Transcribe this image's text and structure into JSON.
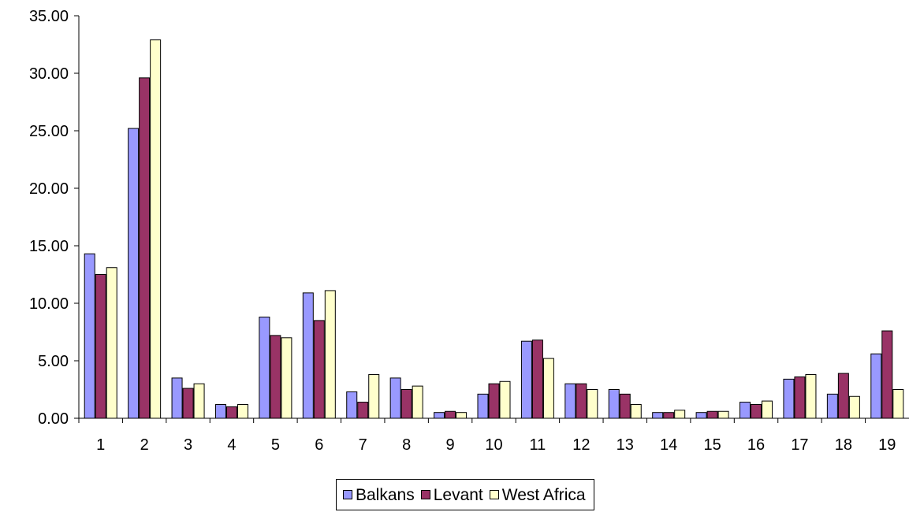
{
  "chart_data": {
    "type": "bar",
    "categories": [
      "1",
      "2",
      "3",
      "4",
      "5",
      "6",
      "7",
      "8",
      "9",
      "10",
      "11",
      "12",
      "13",
      "14",
      "15",
      "16",
      "17",
      "18",
      "19"
    ],
    "series": [
      {
        "name": "Balkans",
        "color": "#9999ff",
        "values": [
          14.3,
          25.2,
          3.5,
          1.2,
          8.8,
          10.9,
          2.3,
          3.5,
          0.5,
          2.1,
          6.7,
          3.0,
          2.5,
          0.5,
          0.5,
          1.4,
          3.4,
          2.1,
          5.6
        ]
      },
      {
        "name": "Levant",
        "color": "#993366",
        "values": [
          12.5,
          29.6,
          2.6,
          1.0,
          7.2,
          8.5,
          1.4,
          2.5,
          0.6,
          3.0,
          6.8,
          3.0,
          2.1,
          0.5,
          0.6,
          1.2,
          3.6,
          3.9,
          7.6
        ]
      },
      {
        "name": "West Africa",
        "color": "#ffffcc",
        "values": [
          13.1,
          32.9,
          3.0,
          1.2,
          7.0,
          11.1,
          3.8,
          2.8,
          0.5,
          3.2,
          5.2,
          2.5,
          1.2,
          0.7,
          0.6,
          1.5,
          3.8,
          1.9,
          2.5
        ]
      }
    ],
    "yticks": [
      "0.00",
      "5.00",
      "10.00",
      "15.00",
      "20.00",
      "25.00",
      "30.00",
      "35.00"
    ],
    "ylim": [
      0,
      35
    ],
    "grid": false,
    "legend_position": "bottom",
    "title": "",
    "xlabel": "",
    "ylabel": ""
  }
}
